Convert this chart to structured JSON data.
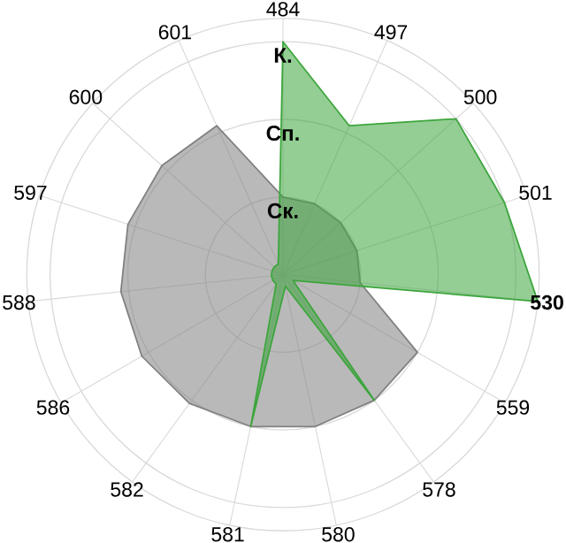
{
  "chart_data": {
    "type": "radar",
    "categories": [
      "484",
      "497",
      "500",
      "501",
      "**530**",
      "559",
      "578",
      "580",
      "581",
      "582",
      "586",
      "588",
      "597",
      "600",
      "601"
    ],
    "series": [
      {
        "color": "#808080",
        "values": [
          1.0,
          1.0,
          1.0,
          1.0,
          1.0,
          2.0,
          2.0,
          2.0,
          2.0,
          2.05,
          2.1,
          2.1,
          2.1,
          2.1,
          2.1
        ]
      },
      {
        "color": "#3ca53c",
        "values": [
          3.0,
          2.1,
          3.0,
          3.0,
          3.3,
          0.15,
          2.0,
          0.15,
          2.0,
          0.15,
          0.15,
          0.15,
          0.15,
          0.15,
          0.15
        ]
      }
    ],
    "ylim": [
      0,
      3.3
    ],
    "yticks": [
      {
        "value": 1,
        "label": "Ск."
      },
      {
        "value": 2,
        "label": "Сп."
      },
      {
        "value": 3,
        "label": "К."
      }
    ],
    "grid": true
  }
}
